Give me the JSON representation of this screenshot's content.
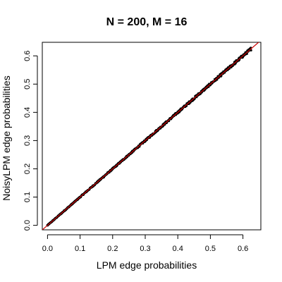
{
  "chart_data": {
    "type": "scatter",
    "title": "N = 200, M = 16",
    "xlabel": "LPM edge probabilities",
    "ylabel": "NoisyLPM edge probabilities",
    "xlim": [
      -0.016,
      0.655
    ],
    "ylim": [
      -0.016,
      0.648
    ],
    "x_ticks": [
      "0.0",
      "0.1",
      "0.2",
      "0.3",
      "0.4",
      "0.5",
      "0.6"
    ],
    "y_ticks": [
      "0.0",
      "0.1",
      "0.2",
      "0.3",
      "0.4",
      "0.5",
      "0.6"
    ],
    "x_tick_values": [
      0,
      0.1,
      0.2,
      0.3,
      0.4,
      0.5,
      0.6
    ],
    "y_tick_values": [
      0,
      0.1,
      0.2,
      0.3,
      0.4,
      0.5,
      0.6
    ],
    "grid": false,
    "series": [
      {
        "marker": "point",
        "color": "#000000",
        "x_range": [
          0.0,
          0.625
        ],
        "y_range": [
          0.0,
          0.625
        ],
        "relation": "y ≈ x",
        "x": [
          0.0,
          0.02,
          0.04,
          0.06,
          0.08,
          0.1,
          0.12,
          0.14,
          0.16,
          0.18,
          0.2,
          0.22,
          0.24,
          0.26,
          0.28,
          0.3,
          0.32,
          0.34,
          0.36,
          0.38,
          0.4,
          0.42,
          0.44,
          0.46,
          0.48,
          0.5,
          0.52,
          0.54,
          0.56,
          0.58,
          0.6,
          0.62
        ],
        "y": [
          0.0,
          0.02,
          0.04,
          0.06,
          0.08,
          0.1,
          0.12,
          0.14,
          0.16,
          0.18,
          0.2,
          0.22,
          0.24,
          0.26,
          0.28,
          0.3,
          0.32,
          0.34,
          0.36,
          0.38,
          0.4,
          0.42,
          0.44,
          0.46,
          0.48,
          0.5,
          0.52,
          0.54,
          0.56,
          0.58,
          0.6,
          0.62
        ]
      }
    ],
    "reference_line": {
      "type": "identity",
      "slope": 1,
      "intercept": 0,
      "color": "#cc0000"
    }
  }
}
